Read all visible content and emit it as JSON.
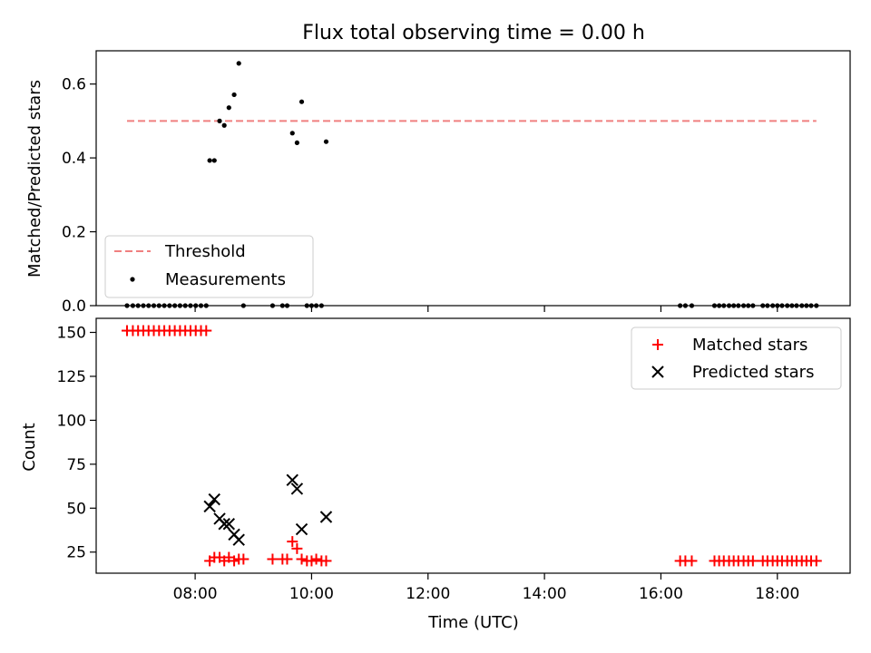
{
  "title": "Flux total observing time = 0.00 h",
  "xlabel": "Time (UTC)",
  "colors": {
    "threshold": "#f08080",
    "measurement": "#000000",
    "matched": "#ff0000",
    "predicted": "#000000"
  },
  "chart_data": [
    {
      "type": "scatter",
      "ylabel": "Matched/Predicted stars",
      "ylim": [
        0,
        0.69
      ],
      "xlim": [
        6.3,
        19.25
      ],
      "x_unit": "hours UTC",
      "yticks": [
        0.0,
        0.2,
        0.4,
        0.6
      ],
      "ytick_labels": [
        "0.0",
        "0.2",
        "0.4",
        "0.6"
      ],
      "legend": {
        "placement": "lower-left",
        "entries": [
          "Threshold",
          "Measurements"
        ]
      },
      "threshold": {
        "name": "Threshold",
        "y": 0.5,
        "x_start": 6.83,
        "x_end": 18.67
      },
      "series": [
        {
          "name": "Measurements",
          "points": [
            [
              6.83,
              0
            ],
            [
              6.93,
              0
            ],
            [
              7.02,
              0
            ],
            [
              7.11,
              0
            ],
            [
              7.2,
              0
            ],
            [
              7.29,
              0
            ],
            [
              7.38,
              0
            ],
            [
              7.47,
              0
            ],
            [
              7.56,
              0
            ],
            [
              7.65,
              0
            ],
            [
              7.74,
              0
            ],
            [
              7.83,
              0
            ],
            [
              7.92,
              0
            ],
            [
              8.01,
              0
            ],
            [
              8.1,
              0
            ],
            [
              8.19,
              0
            ],
            [
              8.25,
              0.393
            ],
            [
              8.33,
              0.393
            ],
            [
              8.42,
              0.5
            ],
            [
              8.5,
              0.488
            ],
            [
              8.58,
              0.536
            ],
            [
              8.67,
              0.571
            ],
            [
              8.75,
              0.656
            ],
            [
              8.83,
              0
            ],
            [
              9.33,
              0
            ],
            [
              9.5,
              0
            ],
            [
              9.58,
              0
            ],
            [
              9.67,
              0.467
            ],
            [
              9.75,
              0.441
            ],
            [
              9.83,
              0.552
            ],
            [
              9.92,
              0
            ],
            [
              10.0,
              0
            ],
            [
              10.08,
              0
            ],
            [
              10.17,
              0
            ],
            [
              10.25,
              0.444
            ],
            [
              16.33,
              0
            ],
            [
              16.42,
              0
            ],
            [
              16.53,
              0
            ],
            [
              16.92,
              0
            ],
            [
              17.0,
              0
            ],
            [
              17.08,
              0
            ],
            [
              17.17,
              0
            ],
            [
              17.25,
              0
            ],
            [
              17.33,
              0
            ],
            [
              17.42,
              0
            ],
            [
              17.5,
              0
            ],
            [
              17.58,
              0
            ],
            [
              17.75,
              0
            ],
            [
              17.83,
              0
            ],
            [
              17.92,
              0
            ],
            [
              18.0,
              0
            ],
            [
              18.08,
              0
            ],
            [
              18.17,
              0
            ],
            [
              18.25,
              0
            ],
            [
              18.33,
              0
            ],
            [
              18.42,
              0
            ],
            [
              18.5,
              0
            ],
            [
              18.58,
              0
            ],
            [
              18.67,
              0
            ]
          ]
        }
      ]
    },
    {
      "type": "scatter",
      "ylabel": "Count",
      "ylim": [
        13,
        158
      ],
      "xlim": [
        6.3,
        19.25
      ],
      "x_unit": "hours UTC",
      "yticks": [
        25,
        50,
        75,
        100,
        125,
        150
      ],
      "ytick_labels": [
        "25",
        "50",
        "75",
        "100",
        "125",
        "150"
      ],
      "xticks": [
        8,
        10,
        12,
        14,
        16,
        18
      ],
      "xtick_labels": [
        "08:00",
        "10:00",
        "12:00",
        "14:00",
        "16:00",
        "18:00"
      ],
      "legend": {
        "placement": "upper-right",
        "entries": [
          "Matched stars",
          "Predicted stars"
        ]
      },
      "series": [
        {
          "name": "Matched stars",
          "marker": "plus",
          "points": [
            [
              6.83,
              151
            ],
            [
              6.93,
              151
            ],
            [
              7.02,
              151
            ],
            [
              7.11,
              151
            ],
            [
              7.2,
              151
            ],
            [
              7.29,
              151
            ],
            [
              7.38,
              151
            ],
            [
              7.47,
              151
            ],
            [
              7.56,
              151
            ],
            [
              7.65,
              151
            ],
            [
              7.74,
              151
            ],
            [
              7.83,
              151
            ],
            [
              7.92,
              151
            ],
            [
              8.01,
              151
            ],
            [
              8.1,
              151
            ],
            [
              8.19,
              151
            ],
            [
              8.25,
              20
            ],
            [
              8.33,
              22
            ],
            [
              8.42,
              22
            ],
            [
              8.5,
              20
            ],
            [
              8.58,
              22
            ],
            [
              8.67,
              20
            ],
            [
              8.75,
              21
            ],
            [
              8.83,
              21
            ],
            [
              9.33,
              21
            ],
            [
              9.5,
              21
            ],
            [
              9.58,
              21
            ],
            [
              9.67,
              31
            ],
            [
              9.75,
              27
            ],
            [
              9.83,
              21
            ],
            [
              9.92,
              20
            ],
            [
              10.0,
              20
            ],
            [
              10.08,
              21
            ],
            [
              10.17,
              20
            ],
            [
              10.25,
              20
            ],
            [
              16.33,
              20
            ],
            [
              16.42,
              20
            ],
            [
              16.53,
              20
            ],
            [
              16.92,
              20
            ],
            [
              17.0,
              20
            ],
            [
              17.08,
              20
            ],
            [
              17.17,
              20
            ],
            [
              17.25,
              20
            ],
            [
              17.33,
              20
            ],
            [
              17.42,
              20
            ],
            [
              17.5,
              20
            ],
            [
              17.58,
              20
            ],
            [
              17.75,
              20
            ],
            [
              17.83,
              20
            ],
            [
              17.92,
              20
            ],
            [
              18.0,
              20
            ],
            [
              18.08,
              20
            ],
            [
              18.17,
              20
            ],
            [
              18.25,
              20
            ],
            [
              18.33,
              20
            ],
            [
              18.42,
              20
            ],
            [
              18.5,
              20
            ],
            [
              18.58,
              20
            ],
            [
              18.67,
              20
            ]
          ]
        },
        {
          "name": "Predicted stars",
          "marker": "x",
          "points": [
            [
              8.25,
              51
            ],
            [
              8.33,
              55
            ],
            [
              8.42,
              44
            ],
            [
              8.5,
              41
            ],
            [
              8.58,
              41
            ],
            [
              8.67,
              35
            ],
            [
              8.75,
              32
            ],
            [
              9.67,
              66
            ],
            [
              9.75,
              61
            ],
            [
              9.83,
              38
            ],
            [
              10.25,
              45
            ]
          ]
        }
      ]
    }
  ]
}
